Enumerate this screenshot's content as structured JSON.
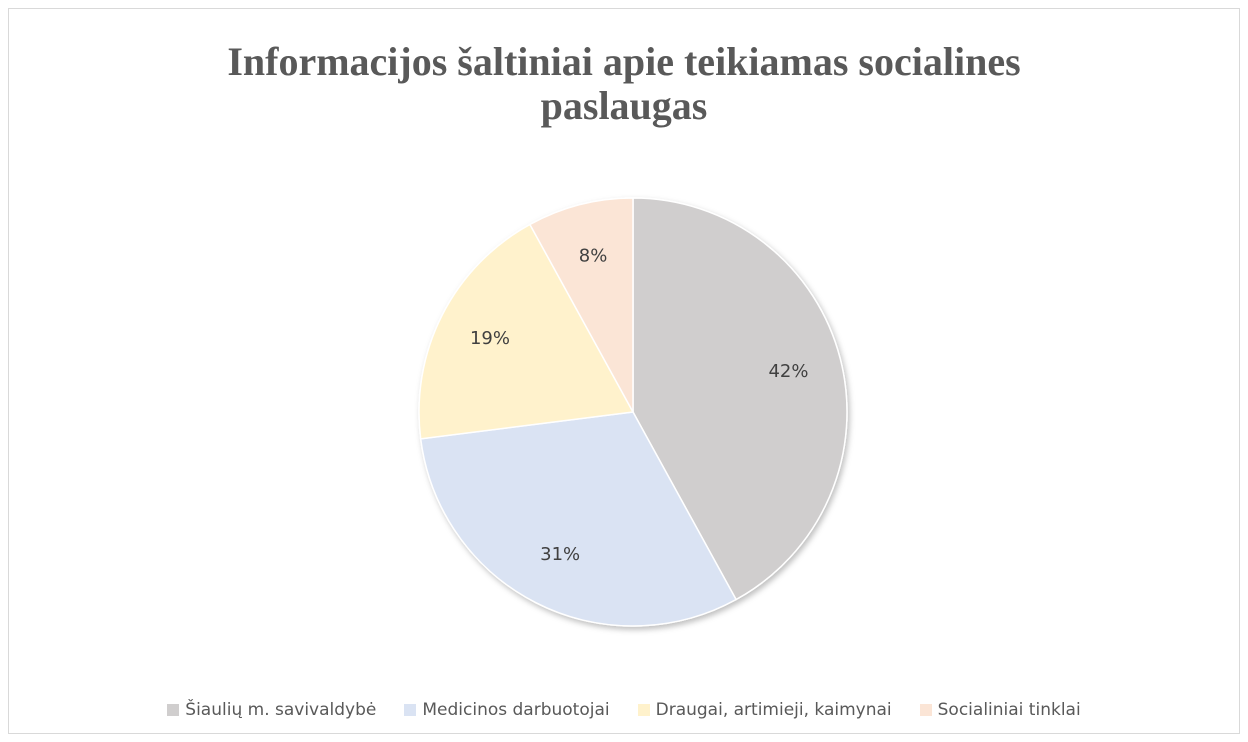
{
  "chart_data": {
    "type": "pie",
    "title": "Informacijos šaltiniai apie teikiamas socialines paslaugas",
    "categories": [
      "Šiaulių m. savivaldybė",
      "Medicinos darbuotojai",
      "Draugai, artimieji, kaimynai",
      "Socialiniai tinklai"
    ],
    "values": [
      42,
      31,
      19,
      8
    ],
    "value_labels": [
      "42%",
      "31%",
      "19%",
      "8%"
    ],
    "colors": [
      "#d0cece",
      "#dae3f3",
      "#fff2cc",
      "#fbe5d6"
    ],
    "legend": "bottom"
  }
}
